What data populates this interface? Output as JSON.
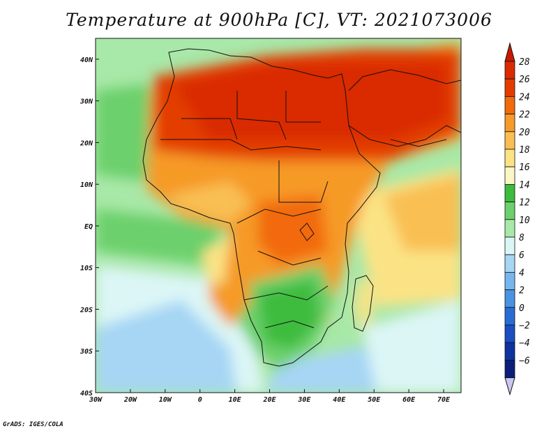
{
  "title": "Temperature at 900hPa [C], VT: 2021073006",
  "footer": "GrADS: IGES/COLA",
  "map": {
    "projection": "lat-lon",
    "lon_range": [
      -30,
      75
    ],
    "lat_range": [
      -40,
      45
    ],
    "lon_ticks": [
      {
        "value": -30,
        "label": "30W"
      },
      {
        "value": -20,
        "label": "20W"
      },
      {
        "value": -10,
        "label": "10W"
      },
      {
        "value": 0,
        "label": "0"
      },
      {
        "value": 10,
        "label": "10E"
      },
      {
        "value": 20,
        "label": "20E"
      },
      {
        "value": 30,
        "label": "30E"
      },
      {
        "value": 40,
        "label": "40E"
      },
      {
        "value": 50,
        "label": "50E"
      },
      {
        "value": 60,
        "label": "60E"
      },
      {
        "value": 70,
        "label": "70E"
      }
    ],
    "lat_ticks": [
      {
        "value": 40,
        "label": "40N"
      },
      {
        "value": 30,
        "label": "30N"
      },
      {
        "value": 20,
        "label": "20N"
      },
      {
        "value": 10,
        "label": "10N"
      },
      {
        "value": 0,
        "label": "EQ"
      },
      {
        "value": -10,
        "label": "10S"
      },
      {
        "value": -20,
        "label": "20S"
      },
      {
        "value": -30,
        "label": "30S"
      },
      {
        "value": -40,
        "label": "40S"
      }
    ]
  },
  "colorbar": {
    "levels": [
      {
        "label": "28",
        "color": "#d92a00"
      },
      {
        "label": "26",
        "color": "#e33c00"
      },
      {
        "label": "24",
        "color": "#f26a0a"
      },
      {
        "label": "22",
        "color": "#f69a28"
      },
      {
        "label": "20",
        "color": "#f9bf52"
      },
      {
        "label": "18",
        "color": "#fbe385"
      },
      {
        "label": "16",
        "color": "#fbf7c5"
      },
      {
        "label": "14",
        "color": "#3cbc3c"
      },
      {
        "label": "12",
        "color": "#6cd06c"
      },
      {
        "label": "10",
        "color": "#a8e8a8"
      },
      {
        "label": "8",
        "color": "#dcf6f6"
      },
      {
        "label": "6",
        "color": "#a6d6f4"
      },
      {
        "label": "4",
        "color": "#76b6ec"
      },
      {
        "label": "2",
        "color": "#4a92e2"
      },
      {
        "label": "0",
        "color": "#2a6cd6"
      },
      {
        "label": "−2",
        "color": "#1a4ec2"
      },
      {
        "label": "−4",
        "color": "#0e32a0"
      },
      {
        "label": "−6",
        "color": "#0a1e7a"
      }
    ],
    "top_color": "#c81a00",
    "bottom_color": "#c8c8f0"
  }
}
